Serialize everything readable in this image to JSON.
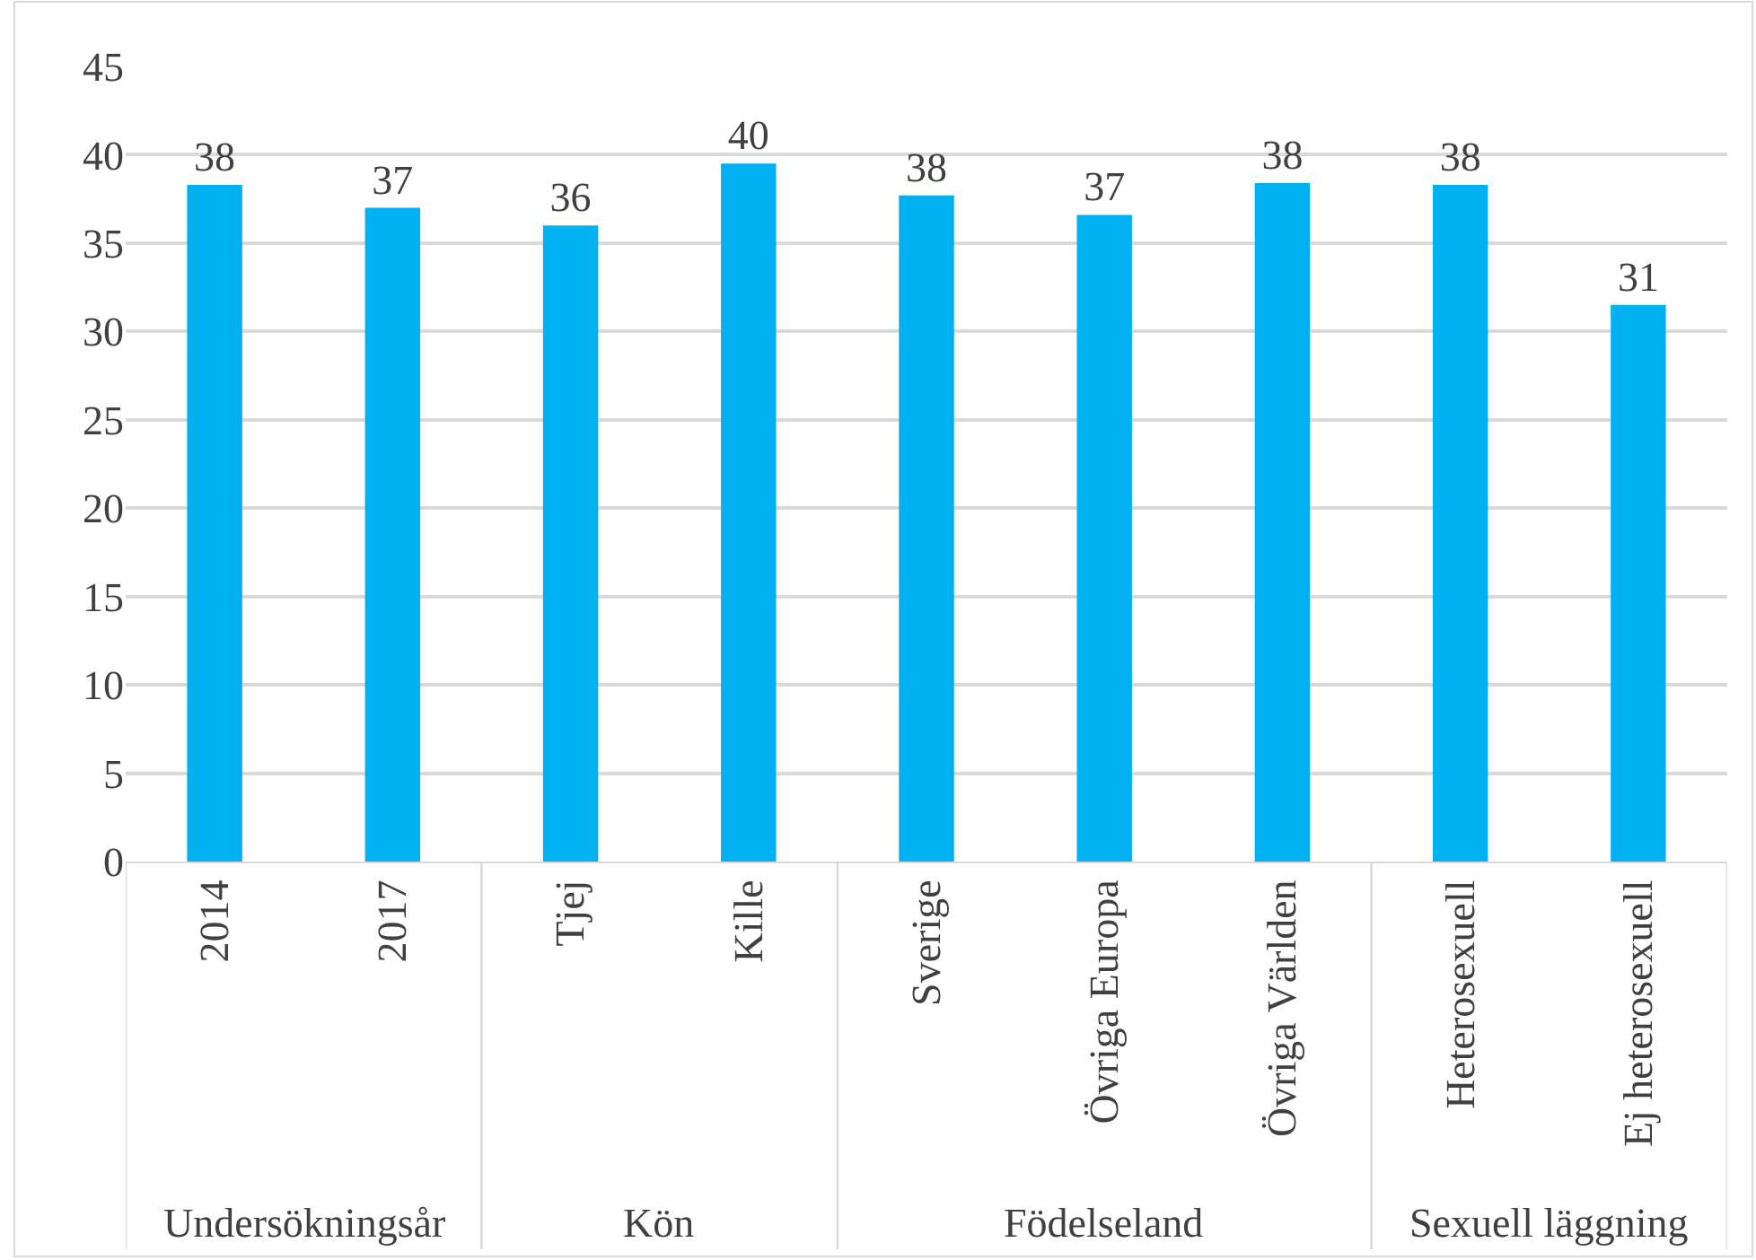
{
  "chart_data": {
    "type": "bar",
    "categories": [
      "2014",
      "2017",
      "Tjej",
      "Kille",
      "Sverige",
      "Övriga Europa",
      "Övriga Världen",
      "Heterosexuell",
      "Ej heterosexuell"
    ],
    "values": [
      38.3,
      37.0,
      36.0,
      39.5,
      37.7,
      36.6,
      38.4,
      38.3,
      31.5
    ],
    "value_labels": [
      "38",
      "37",
      "36",
      "40",
      "38",
      "37",
      "38",
      "38",
      "31"
    ],
    "color": "#00b0f0",
    "ylim": [
      0,
      45
    ],
    "yticks": [
      0,
      5,
      10,
      15,
      20,
      25,
      30,
      35,
      40,
      45
    ],
    "grid": "y",
    "annotations": [
      "Undersökningsår",
      "Kön",
      "Födelseland",
      "Sexuell läggning"
    ]
  }
}
